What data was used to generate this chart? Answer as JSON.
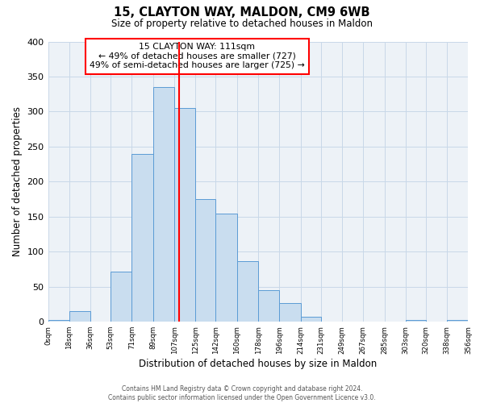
{
  "title": "15, CLAYTON WAY, MALDON, CM9 6WB",
  "subtitle": "Size of property relative to detached houses in Maldon",
  "xlabel": "Distribution of detached houses by size in Maldon",
  "ylabel": "Number of detached properties",
  "bin_edges": [
    0,
    18,
    36,
    53,
    71,
    89,
    107,
    125,
    142,
    160,
    178,
    196,
    214,
    231,
    249,
    267,
    285,
    303,
    320,
    338,
    356
  ],
  "bin_heights": [
    3,
    15,
    0,
    72,
    240,
    335,
    305,
    175,
    154,
    87,
    45,
    27,
    7,
    0,
    0,
    0,
    0,
    3,
    0,
    3
  ],
  "bar_facecolor": "#c9ddef",
  "bar_edgecolor": "#5b9bd5",
  "vline_x": 111,
  "vline_color": "red",
  "annotation_lines": [
    "15 CLAYTON WAY: 111sqm",
    "← 49% of detached houses are smaller (727)",
    "49% of semi-detached houses are larger (725) →"
  ],
  "annotation_box_edgecolor": "red",
  "xlim": [
    0,
    356
  ],
  "ylim": [
    0,
    400
  ],
  "yticks": [
    0,
    50,
    100,
    150,
    200,
    250,
    300,
    350,
    400
  ],
  "xtick_labels": [
    "0sqm",
    "18sqm",
    "36sqm",
    "53sqm",
    "71sqm",
    "89sqm",
    "107sqm",
    "125sqm",
    "142sqm",
    "160sqm",
    "178sqm",
    "196sqm",
    "214sqm",
    "231sqm",
    "249sqm",
    "267sqm",
    "285sqm",
    "303sqm",
    "320sqm",
    "338sqm",
    "356sqm"
  ],
  "footer_lines": [
    "Contains HM Land Registry data © Crown copyright and database right 2024.",
    "Contains public sector information licensed under the Open Government Licence v3.0."
  ],
  "bg_color": "#edf2f7",
  "grid_color": "#c8d8e8"
}
